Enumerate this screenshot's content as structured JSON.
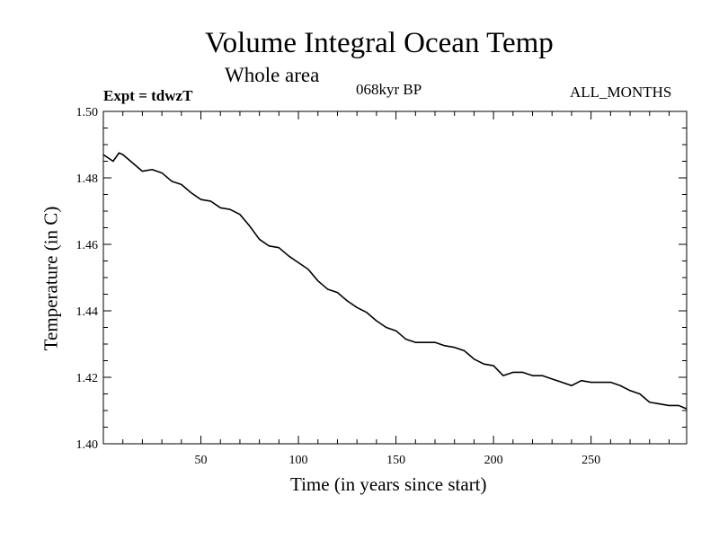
{
  "chart_data": {
    "type": "line",
    "title": "Volume Integral Ocean Temp",
    "subtitle": "Whole area",
    "left_note": "Expt = tdwzT",
    "center_note": "068kyr BP",
    "right_note": "ALL_MONTHS",
    "xlabel": "Time (in years since start)",
    "ylabel": "Temperature (in C)",
    "xlim": [
      0,
      299
    ],
    "ylim": [
      1.4,
      1.5
    ],
    "xticks": [
      50,
      100,
      150,
      200,
      250
    ],
    "yticks": [
      "1.40",
      "1.42",
      "1.44",
      "1.46",
      "1.48",
      "1.50"
    ],
    "grid": false,
    "series": [
      {
        "x": [
          0,
          5,
          8,
          10,
          15,
          20,
          25,
          30,
          35,
          40,
          45,
          50,
          55,
          60,
          65,
          70,
          75,
          80,
          85,
          90,
          95,
          100,
          105,
          110,
          115,
          120,
          125,
          130,
          135,
          140,
          145,
          150,
          155,
          160,
          165,
          170,
          175,
          180,
          185,
          190,
          195,
          200,
          205,
          210,
          215,
          220,
          225,
          230,
          235,
          240,
          245,
          250,
          255,
          260,
          265,
          270,
          275,
          280,
          285,
          290,
          295,
          299
        ],
        "y": [
          1.487,
          1.485,
          1.4875,
          1.487,
          1.4845,
          1.482,
          1.4825,
          1.4815,
          1.479,
          1.478,
          1.4755,
          1.4735,
          1.473,
          1.471,
          1.4705,
          1.469,
          1.4655,
          1.4615,
          1.4595,
          1.459,
          1.4565,
          1.4545,
          1.4525,
          1.449,
          1.4465,
          1.4455,
          1.443,
          1.441,
          1.4395,
          1.437,
          1.435,
          1.434,
          1.4315,
          1.4305,
          1.4305,
          1.4305,
          1.4295,
          1.429,
          1.428,
          1.4255,
          1.424,
          1.4235,
          1.4205,
          1.4215,
          1.4215,
          1.4205,
          1.4205,
          1.4195,
          1.4185,
          1.4175,
          1.419,
          1.4185,
          1.4185,
          1.4185,
          1.4175,
          1.416,
          1.415,
          1.4125,
          1.412,
          1.4115,
          1.4115,
          1.4105
        ]
      }
    ]
  }
}
